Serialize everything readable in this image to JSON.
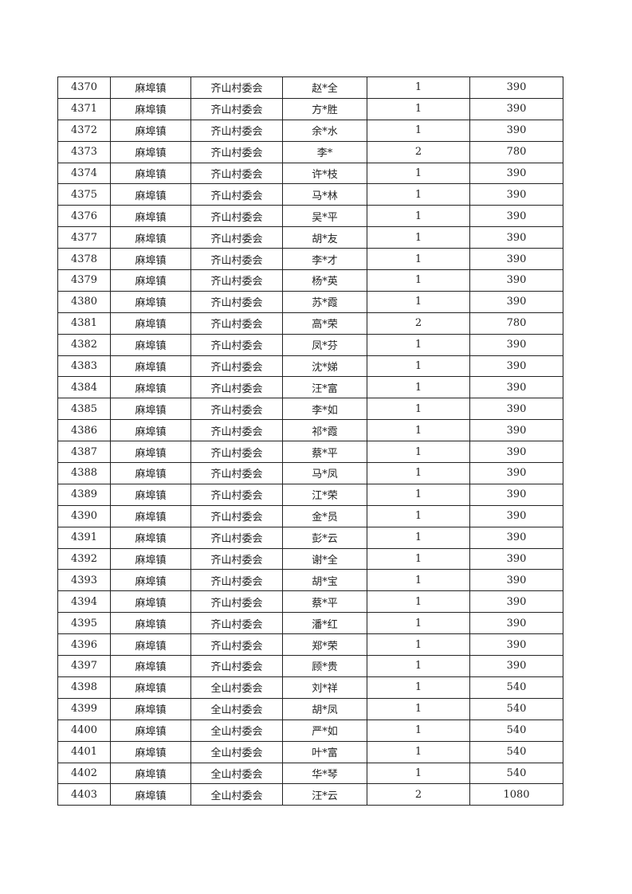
{
  "rows": [
    [
      "4370",
      "麻埠镇",
      "齐山村委会",
      "赵*全",
      "1",
      "390"
    ],
    [
      "4371",
      "麻埠镇",
      "齐山村委会",
      "方*胜",
      "1",
      "390"
    ],
    [
      "4372",
      "麻埠镇",
      "齐山村委会",
      "余*水",
      "1",
      "390"
    ],
    [
      "4373",
      "麻埠镇",
      "齐山村委会",
      "李*",
      "2",
      "780"
    ],
    [
      "4374",
      "麻埠镇",
      "齐山村委会",
      "许*枝",
      "1",
      "390"
    ],
    [
      "4375",
      "麻埠镇",
      "齐山村委会",
      "马*林",
      "1",
      "390"
    ],
    [
      "4376",
      "麻埠镇",
      "齐山村委会",
      "吴*平",
      "1",
      "390"
    ],
    [
      "4377",
      "麻埠镇",
      "齐山村委会",
      "胡*友",
      "1",
      "390"
    ],
    [
      "4378",
      "麻埠镇",
      "齐山村委会",
      "李*才",
      "1",
      "390"
    ],
    [
      "4379",
      "麻埠镇",
      "齐山村委会",
      "杨*英",
      "1",
      "390"
    ],
    [
      "4380",
      "麻埠镇",
      "齐山村委会",
      "苏*霞",
      "1",
      "390"
    ],
    [
      "4381",
      "麻埠镇",
      "齐山村委会",
      "高*荣",
      "2",
      "780"
    ],
    [
      "4382",
      "麻埠镇",
      "齐山村委会",
      "凤*芬",
      "1",
      "390"
    ],
    [
      "4383",
      "麻埠镇",
      "齐山村委会",
      "沈*娣",
      "1",
      "390"
    ],
    [
      "4384",
      "麻埠镇",
      "齐山村委会",
      "汪*富",
      "1",
      "390"
    ],
    [
      "4385",
      "麻埠镇",
      "齐山村委会",
      "李*如",
      "1",
      "390"
    ],
    [
      "4386",
      "麻埠镇",
      "齐山村委会",
      "祁*霞",
      "1",
      "390"
    ],
    [
      "4387",
      "麻埠镇",
      "齐山村委会",
      "蔡*平",
      "1",
      "390"
    ],
    [
      "4388",
      "麻埠镇",
      "齐山村委会",
      "马*凤",
      "1",
      "390"
    ],
    [
      "4389",
      "麻埠镇",
      "齐山村委会",
      "江*荣",
      "1",
      "390"
    ],
    [
      "4390",
      "麻埠镇",
      "齐山村委会",
      "金*员",
      "1",
      "390"
    ],
    [
      "4391",
      "麻埠镇",
      "齐山村委会",
      "彭*云",
      "1",
      "390"
    ],
    [
      "4392",
      "麻埠镇",
      "齐山村委会",
      "谢*全",
      "1",
      "390"
    ],
    [
      "4393",
      "麻埠镇",
      "齐山村委会",
      "胡*宝",
      "1",
      "390"
    ],
    [
      "4394",
      "麻埠镇",
      "齐山村委会",
      "蔡*平",
      "1",
      "390"
    ],
    [
      "4395",
      "麻埠镇",
      "齐山村委会",
      "潘*红",
      "1",
      "390"
    ],
    [
      "4396",
      "麻埠镇",
      "齐山村委会",
      "郑*荣",
      "1",
      "390"
    ],
    [
      "4397",
      "麻埠镇",
      "齐山村委会",
      "顾*贵",
      "1",
      "390"
    ],
    [
      "4398",
      "麻埠镇",
      "全山村委会",
      "刘*祥",
      "1",
      "540"
    ],
    [
      "4399",
      "麻埠镇",
      "全山村委会",
      "胡*凤",
      "1",
      "540"
    ],
    [
      "4400",
      "麻埠镇",
      "全山村委会",
      "严*如",
      "1",
      "540"
    ],
    [
      "4401",
      "麻埠镇",
      "全山村委会",
      "叶*富",
      "1",
      "540"
    ],
    [
      "4402",
      "麻埠镇",
      "全山村委会",
      "华*琴",
      "1",
      "540"
    ],
    [
      "4403",
      "麻埠镇",
      "全山村委会",
      "汪*云",
      "2",
      "1080"
    ]
  ]
}
